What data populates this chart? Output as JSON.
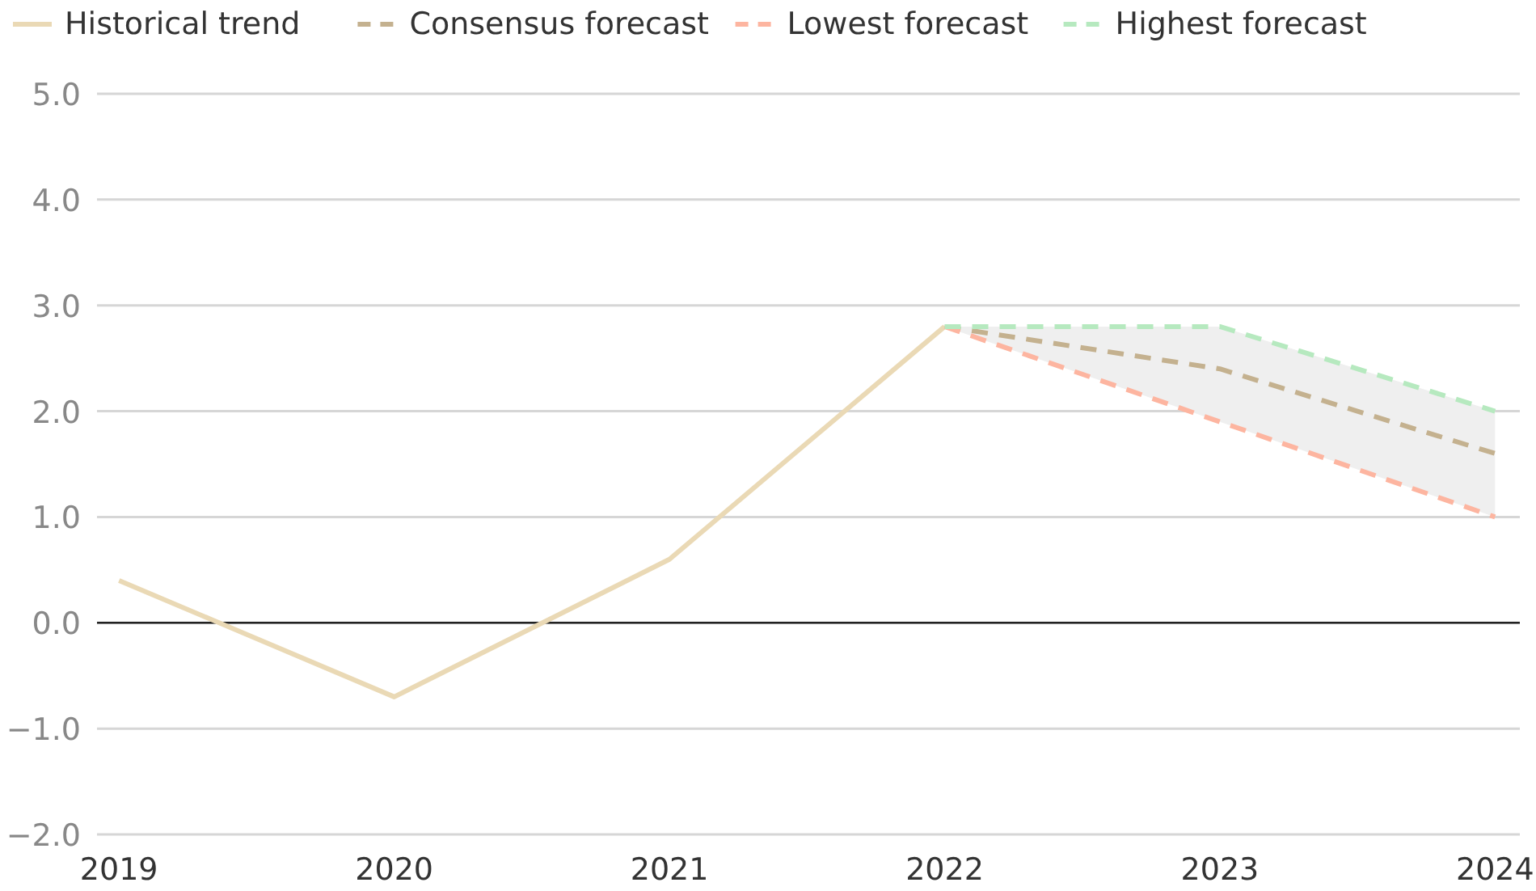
{
  "chart_data": {
    "type": "line",
    "xlim": [
      2018.92,
      2024.09
    ],
    "xticks": [
      2019,
      2020,
      2021,
      2022,
      2023,
      2024
    ],
    "ylim": [
      -2,
      5
    ],
    "yticks": [
      {
        "value": -2,
        "label": "−2.0"
      },
      {
        "value": -1,
        "label": "−1.0"
      },
      {
        "value": 0,
        "label": "0.0"
      },
      {
        "value": 1,
        "label": "1.0"
      },
      {
        "value": 2,
        "label": "2.0"
      },
      {
        "value": 3,
        "label": "3.0"
      },
      {
        "value": 4,
        "label": "4.0"
      },
      {
        "value": 5,
        "label": "5.0"
      }
    ],
    "grid": "y",
    "legend": "top left",
    "marker": "none",
    "ref_lines": [
      {
        "axis": "y",
        "value": 0,
        "color": "#222222"
      }
    ],
    "series": [
      {
        "name": "Historical trend",
        "color": "#ead9b5",
        "line_style": "solid",
        "x": [
          2019,
          2020,
          2021,
          2022
        ],
        "values": [
          0.4,
          -0.7,
          0.6,
          2.8
        ]
      },
      {
        "name": "Consensus forecast",
        "color": "#c4b18f",
        "line_style": "dashed",
        "x": [
          2022,
          2023,
          2024
        ],
        "values": [
          2.8,
          2.4,
          1.6
        ],
        "lower": [
          2.8,
          1.9,
          1.0
        ],
        "upper": [
          2.8,
          2.8,
          2.0
        ]
      },
      {
        "name": "Lowest forecast",
        "color": "#fdb5a0",
        "line_style": "dashed",
        "x": [
          2022,
          2023,
          2024
        ],
        "values": [
          2.8,
          1.9,
          1.0
        ]
      },
      {
        "name": "Highest forecast",
        "color": "#b6e9bf",
        "line_style": "dashed",
        "x": [
          2022,
          2023,
          2024
        ],
        "values": [
          2.8,
          2.8,
          2.0
        ]
      }
    ]
  }
}
